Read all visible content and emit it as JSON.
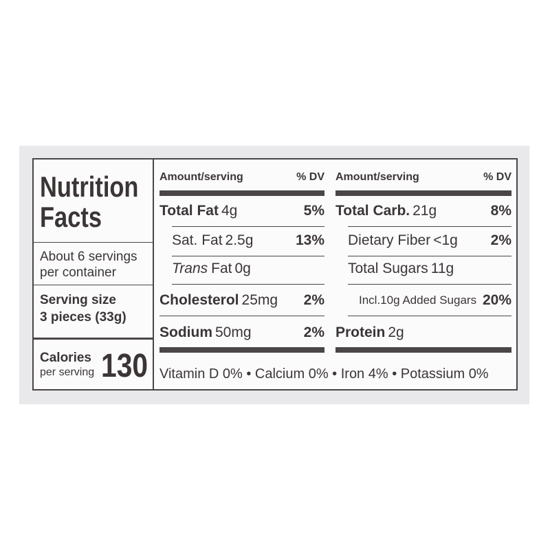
{
  "label": {
    "title": "Nutrition Facts",
    "servings": "About 6 servings per container",
    "serving_size_label": "Serving size",
    "serving_size": "3 pieces (33g)",
    "calories_label": "Calories",
    "calories_sub": "per serving",
    "calories": "130",
    "columns": [
      {
        "header_amount": "Amount/serving",
        "header_dv": "% DV",
        "rows": [
          {
            "label": "Total Fat",
            "amount": "4g",
            "dv": "5%"
          },
          {
            "label": "Sat. Fat",
            "amount": "2.5g",
            "dv": "13%"
          },
          {
            "label_italic": "Trans",
            "label": "Fat",
            "amount": "0g"
          },
          {
            "label": "Cholesterol",
            "amount": "25mg",
            "dv": "2%"
          },
          {
            "label": "Sodium",
            "amount": "50mg",
            "dv": "2%"
          }
        ]
      },
      {
        "header_amount": "Amount/serving",
        "header_dv": "% DV",
        "rows": [
          {
            "label": "Total Carb.",
            "amount": "21g",
            "dv": "8%"
          },
          {
            "label": "Dietary Fiber",
            "amount": "<1g",
            "dv": "2%"
          },
          {
            "label": "Total Sugars",
            "amount": "11g"
          },
          {
            "label": "Incl.10g Added Sugars",
            "dv": "20%"
          },
          {
            "label": "Protein",
            "amount": "2g"
          }
        ]
      }
    ],
    "footer": "Vitamin D 0% • Calcium 0% • Iron 4% • Potassium 0%"
  }
}
